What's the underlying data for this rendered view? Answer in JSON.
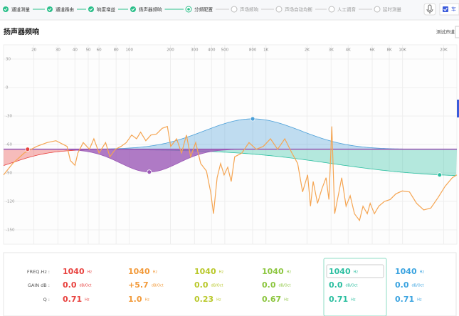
{
  "steps": [
    {
      "label": "通道测量",
      "state": "done"
    },
    {
      "label": "通道路由",
      "state": "done"
    },
    {
      "label": "响度增益",
      "state": "done"
    },
    {
      "label": "扬声器频响",
      "state": "done"
    },
    {
      "label": "分频配置",
      "state": "current"
    },
    {
      "label": "声场频响",
      "state": "todo"
    },
    {
      "label": "声场自动均衡",
      "state": "todo"
    },
    {
      "label": "人工调音",
      "state": "todo"
    },
    {
      "label": "延时测量",
      "state": "todo"
    }
  ],
  "header": {
    "checkbox_label": "车"
  },
  "page": {
    "title": "扬声器频响",
    "channel_label": "测试声道"
  },
  "chart": {
    "x_scale": "log",
    "xlim": [
      12,
      25000
    ],
    "xticks": [
      20,
      30,
      40,
      50,
      60,
      80,
      100,
      200,
      300,
      400,
      500,
      800,
      {
        "value": 1000,
        "label": "1K"
      },
      {
        "value": 2000,
        "label": "2K"
      },
      {
        "value": 3000,
        "label": "3K"
      },
      {
        "value": 4000,
        "label": "4K"
      },
      {
        "value": 6000,
        "label": "6K"
      },
      {
        "value": 8000,
        "label": "8K"
      },
      {
        "value": 10000,
        "label": "10K"
      },
      {
        "value": 20000,
        "label": "20K"
      }
    ],
    "ylim": [
      -165,
      45
    ],
    "yticks": [
      30,
      0,
      -30,
      -60,
      -90,
      -120,
      -150
    ],
    "grid": true,
    "baseline": -65,
    "response": {
      "color": "#f5a552",
      "x": [
        12,
        14,
        17,
        21,
        25,
        29,
        35,
        37,
        40,
        42,
        46,
        51,
        55,
        60,
        67,
        72,
        79,
        87,
        95,
        104,
        113,
        121,
        132,
        144,
        158,
        174,
        190,
        201,
        222,
        241,
        262,
        281,
        306,
        333,
        367,
        394,
        413,
        439,
        466,
        494,
        525,
        557,
        591,
        667,
        752,
        849,
        957,
        1080,
        1218,
        1375,
        1550,
        1708,
        1856,
        2020,
        2120,
        2219,
        2388,
        2566,
        2757,
        2893,
        3038,
        3188,
        3425,
        3590,
        3860,
        4141,
        4446,
        4844,
        5140,
        5524,
        5797,
        6227,
        6705,
        7374,
        8124,
        8949,
        9964,
        11240,
        12680,
        14290,
        16120,
        18190,
        20520,
        23140,
        25000
      ],
      "values": [
        -92,
        -80,
        -69,
        -62,
        -58,
        -56,
        -62,
        -77,
        -82,
        -69,
        -58,
        -65,
        -54,
        -69,
        -58,
        -73,
        -65,
        -62,
        -58,
        -50,
        -54,
        -47,
        -56,
        -50,
        -49,
        -43,
        -41,
        -62,
        -54,
        -69,
        -50,
        -73,
        -58,
        -80,
        -88,
        -110,
        -133,
        -95,
        -80,
        -92,
        -84,
        -99,
        -73,
        -69,
        -58,
        -65,
        -62,
        -54,
        -65,
        -54,
        -69,
        -80,
        -110,
        -92,
        -125,
        -99,
        -122,
        -107,
        -95,
        -118,
        -41,
        -133,
        -110,
        -95,
        -125,
        -114,
        -133,
        -140,
        -125,
        -133,
        -122,
        -133,
        -125,
        -120,
        -118,
        -112,
        -109,
        -110,
        -122,
        -129,
        -127,
        -116,
        -104,
        -95,
        -92
      ]
    },
    "filters": [
      {
        "kind": "low-shelf",
        "color": "#e8423f",
        "freq": 18,
        "level": -65
      },
      {
        "kind": "bell",
        "color": "#9b59b6",
        "freq": 140,
        "level": -89
      },
      {
        "kind": "bell",
        "color": "#4a9fd8",
        "freq": 800,
        "level": -33
      },
      {
        "kind": "high-shelf",
        "color": "#2bbfa0",
        "freq": 18700,
        "level": -92
      }
    ]
  },
  "params": {
    "row_labels": [
      "FREQ.Hz :",
      "GAIN dB :",
      "Q :"
    ],
    "selected": 4,
    "columns": [
      {
        "color": "#e8423f",
        "freq": "1040",
        "freq_unit": "Hz",
        "gain": "0.0",
        "gain_unit": "dB/Oct",
        "q": "0.71",
        "q_unit": "Hz"
      },
      {
        "color": "#f29a3a",
        "freq": "1040",
        "freq_unit": "Hz",
        "gain": "+5.7",
        "gain_unit": "dB/Oct",
        "q": "1.0",
        "q_unit": "Hz"
      },
      {
        "color": "#b9c82a",
        "freq": "1040",
        "freq_unit": "Hz",
        "gain": "0.0",
        "gain_unit": "dB/Oct",
        "q": "0.23",
        "q_unit": "Hz"
      },
      {
        "color": "#8cc63f",
        "freq": "1040",
        "freq_unit": "Hz",
        "gain": "0.0",
        "gain_unit": "dB/Oct",
        "q": "0.67",
        "q_unit": "Hz"
      },
      {
        "color": "#2bbfa0",
        "freq": "1040",
        "freq_unit": "Hz",
        "gain": "0.0",
        "gain_unit": "dB/Oct",
        "q": "0.71",
        "q_unit": "Hz"
      },
      {
        "color": "#3aa3e0",
        "freq": "1040",
        "freq_unit": "Hz",
        "gain": "0.0",
        "gain_unit": "dB/Oct",
        "q": "0.71",
        "q_unit": "Hz"
      }
    ]
  }
}
